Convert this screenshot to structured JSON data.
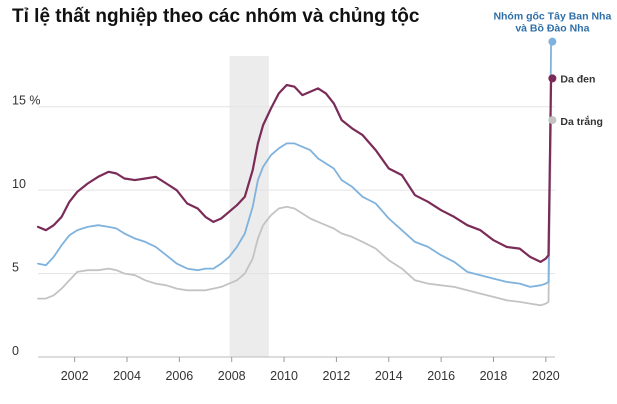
{
  "chart_data": {
    "type": "line",
    "title": "Tỉ lệ thất nghiệp theo các nhóm và chủng tộc",
    "xlabel": "",
    "ylabel": "",
    "xlim": [
      2000.6,
      2020.35
    ],
    "ylim": [
      0,
      19
    ],
    "x_ticks": [
      {
        "value": 2002,
        "label": "2002"
      },
      {
        "value": 2004,
        "label": "2004"
      },
      {
        "value": 2006,
        "label": "2006"
      },
      {
        "value": 2008,
        "label": "2008"
      },
      {
        "value": 2010,
        "label": "2010"
      },
      {
        "value": 2012,
        "label": "2012"
      },
      {
        "value": 2014,
        "label": "2014"
      },
      {
        "value": 2016,
        "label": "2016"
      },
      {
        "value": 2018,
        "label": "2018"
      },
      {
        "value": 2020,
        "label": "2020"
      }
    ],
    "y_ticks": [
      {
        "value": 0,
        "label": "0"
      },
      {
        "value": 5,
        "label": "5"
      },
      {
        "value": 10,
        "label": "10"
      },
      {
        "value": 15,
        "label": "15 %"
      }
    ],
    "grid": true,
    "recession_band": {
      "start": 2007.92,
      "end": 2009.42,
      "color": "#ececec"
    },
    "series": [
      {
        "name": "Da đen",
        "color": "#7a2b57",
        "x": [
          2000.6,
          2000.9,
          2001.2,
          2001.5,
          2001.8,
          2002.1,
          2002.5,
          2002.9,
          2003.3,
          2003.6,
          2003.9,
          2004.3,
          2004.7,
          2005.1,
          2005.5,
          2005.9,
          2006.3,
          2006.7,
          2007.0,
          2007.3,
          2007.6,
          2007.9,
          2008.2,
          2008.5,
          2008.8,
          2009.0,
          2009.2,
          2009.5,
          2009.8,
          2010.1,
          2010.4,
          2010.7,
          2011.0,
          2011.3,
          2011.6,
          2011.9,
          2012.2,
          2012.6,
          2013.0,
          2013.5,
          2014.0,
          2014.5,
          2015.0,
          2015.5,
          2016.0,
          2016.5,
          2017.0,
          2017.5,
          2018.0,
          2018.5,
          2019.0,
          2019.4,
          2019.8,
          2020.0,
          2020.1,
          2020.2,
          2020.25
        ],
        "values": [
          7.8,
          7.6,
          7.9,
          8.4,
          9.3,
          9.9,
          10.4,
          10.8,
          11.1,
          11.0,
          10.7,
          10.6,
          10.7,
          10.8,
          10.4,
          10.0,
          9.2,
          8.9,
          8.4,
          8.1,
          8.3,
          8.7,
          9.1,
          9.6,
          11.2,
          12.8,
          13.9,
          14.9,
          15.8,
          16.3,
          16.2,
          15.7,
          15.9,
          16.1,
          15.8,
          15.2,
          14.2,
          13.7,
          13.3,
          12.4,
          11.3,
          10.9,
          9.7,
          9.3,
          8.8,
          8.4,
          7.9,
          7.6,
          7.0,
          6.6,
          6.5,
          6.0,
          5.7,
          5.9,
          6.1,
          16.7,
          16.7
        ]
      },
      {
        "name": "Nhóm gốc Tây Ban Nha\nvà Bồ Đào Nha",
        "color": "#7fb2dd",
        "x": [
          2000.6,
          2000.9,
          2001.2,
          2001.5,
          2001.8,
          2002.1,
          2002.5,
          2002.9,
          2003.3,
          2003.6,
          2003.9,
          2004.3,
          2004.7,
          2005.1,
          2005.5,
          2005.9,
          2006.3,
          2006.7,
          2007.0,
          2007.3,
          2007.6,
          2007.9,
          2008.2,
          2008.5,
          2008.8,
          2009.0,
          2009.2,
          2009.5,
          2009.8,
          2010.1,
          2010.4,
          2010.7,
          2011.0,
          2011.3,
          2011.6,
          2011.9,
          2012.2,
          2012.6,
          2013.0,
          2013.5,
          2014.0,
          2014.5,
          2015.0,
          2015.5,
          2016.0,
          2016.5,
          2017.0,
          2017.5,
          2018.0,
          2018.5,
          2019.0,
          2019.4,
          2019.8,
          2020.0,
          2020.1,
          2020.2,
          2020.25
        ],
        "values": [
          5.6,
          5.5,
          6.0,
          6.7,
          7.3,
          7.6,
          7.8,
          7.9,
          7.8,
          7.7,
          7.4,
          7.1,
          6.9,
          6.6,
          6.1,
          5.6,
          5.3,
          5.2,
          5.3,
          5.3,
          5.6,
          6.0,
          6.6,
          7.4,
          9.0,
          10.6,
          11.4,
          12.1,
          12.5,
          12.8,
          12.8,
          12.6,
          12.4,
          11.9,
          11.6,
          11.3,
          10.6,
          10.2,
          9.6,
          9.2,
          8.3,
          7.6,
          6.9,
          6.6,
          6.1,
          5.7,
          5.1,
          4.9,
          4.7,
          4.5,
          4.4,
          4.2,
          4.3,
          4.4,
          4.5,
          18.9,
          18.9
        ]
      },
      {
        "name": "Da trắng",
        "color": "#c3c3c3",
        "x": [
          2000.6,
          2000.9,
          2001.2,
          2001.5,
          2001.8,
          2002.1,
          2002.5,
          2002.9,
          2003.3,
          2003.6,
          2003.9,
          2004.3,
          2004.7,
          2005.1,
          2005.5,
          2005.9,
          2006.3,
          2006.7,
          2007.0,
          2007.3,
          2007.6,
          2007.9,
          2008.2,
          2008.5,
          2008.8,
          2009.0,
          2009.2,
          2009.5,
          2009.8,
          2010.1,
          2010.4,
          2010.7,
          2011.0,
          2011.3,
          2011.6,
          2011.9,
          2012.2,
          2012.6,
          2013.0,
          2013.5,
          2014.0,
          2014.5,
          2015.0,
          2015.5,
          2016.0,
          2016.5,
          2017.0,
          2017.5,
          2018.0,
          2018.5,
          2019.0,
          2019.4,
          2019.8,
          2020.0,
          2020.1,
          2020.2,
          2020.25
        ],
        "values": [
          3.5,
          3.5,
          3.7,
          4.1,
          4.6,
          5.1,
          5.2,
          5.2,
          5.3,
          5.2,
          5.0,
          4.9,
          4.6,
          4.4,
          4.3,
          4.1,
          4.0,
          4.0,
          4.0,
          4.1,
          4.2,
          4.4,
          4.6,
          5.0,
          5.9,
          7.1,
          7.9,
          8.5,
          8.9,
          9.0,
          8.9,
          8.6,
          8.3,
          8.1,
          7.9,
          7.7,
          7.4,
          7.2,
          6.9,
          6.5,
          5.8,
          5.3,
          4.6,
          4.4,
          4.3,
          4.2,
          4.0,
          3.8,
          3.6,
          3.4,
          3.3,
          3.2,
          3.1,
          3.2,
          3.3,
          14.2,
          14.2
        ]
      }
    ]
  }
}
